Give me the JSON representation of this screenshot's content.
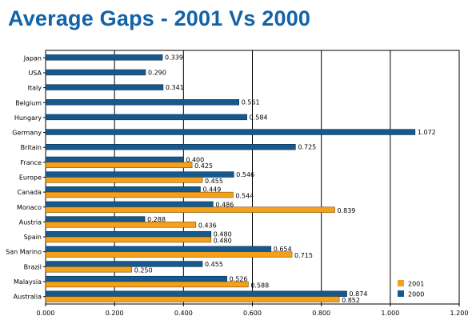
{
  "chart_data": {
    "type": "bar",
    "orientation": "horizontal",
    "title": "Average Gaps - 2001 Vs 2000",
    "xlabel": "",
    "ylabel": "",
    "xlim": [
      0,
      1.2
    ],
    "xticks": [
      "0.000",
      "0.200",
      "0.400",
      "0.600",
      "0.800",
      "1.000",
      "1.200"
    ],
    "grid": "vertical",
    "legend_position": "bottom-right",
    "categories": [
      "Japan",
      "USA",
      "Italy",
      "Belgium",
      "Hungary",
      "Germany",
      "Britain",
      "France",
      "Europe",
      "Canada",
      "Monaco",
      "Austria",
      "Spain",
      "San Marino",
      "Brazil",
      "Malaysia",
      "Australia"
    ],
    "series": [
      {
        "name": "2001",
        "color": "#f5a01a",
        "values": [
          null,
          null,
          null,
          null,
          null,
          null,
          null,
          0.425,
          0.455,
          0.544,
          0.839,
          0.436,
          0.48,
          0.715,
          0.25,
          0.588,
          0.852
        ],
        "labels": [
          "",
          "",
          "",
          "",
          "",
          "",
          "",
          "0.425",
          "0.455",
          "0.544",
          "0.839",
          "0.436",
          "0.480",
          "0.715",
          "0.250",
          "0.588",
          "0.852"
        ]
      },
      {
        "name": "2000",
        "color": "#15598f",
        "values": [
          0.339,
          0.29,
          0.341,
          0.561,
          0.584,
          1.072,
          0.725,
          0.4,
          0.546,
          0.449,
          0.486,
          0.288,
          0.48,
          0.654,
          0.455,
          0.526,
          0.874
        ],
        "labels": [
          "0.339",
          "0.290",
          "0.341",
          "0.561",
          "0.584",
          "1.072",
          "0.725",
          "0.400",
          "0.546",
          "0.449",
          "0.486",
          "0.288",
          "0.480",
          "0.654",
          "0.455",
          "0.526",
          "0.874"
        ]
      }
    ]
  }
}
